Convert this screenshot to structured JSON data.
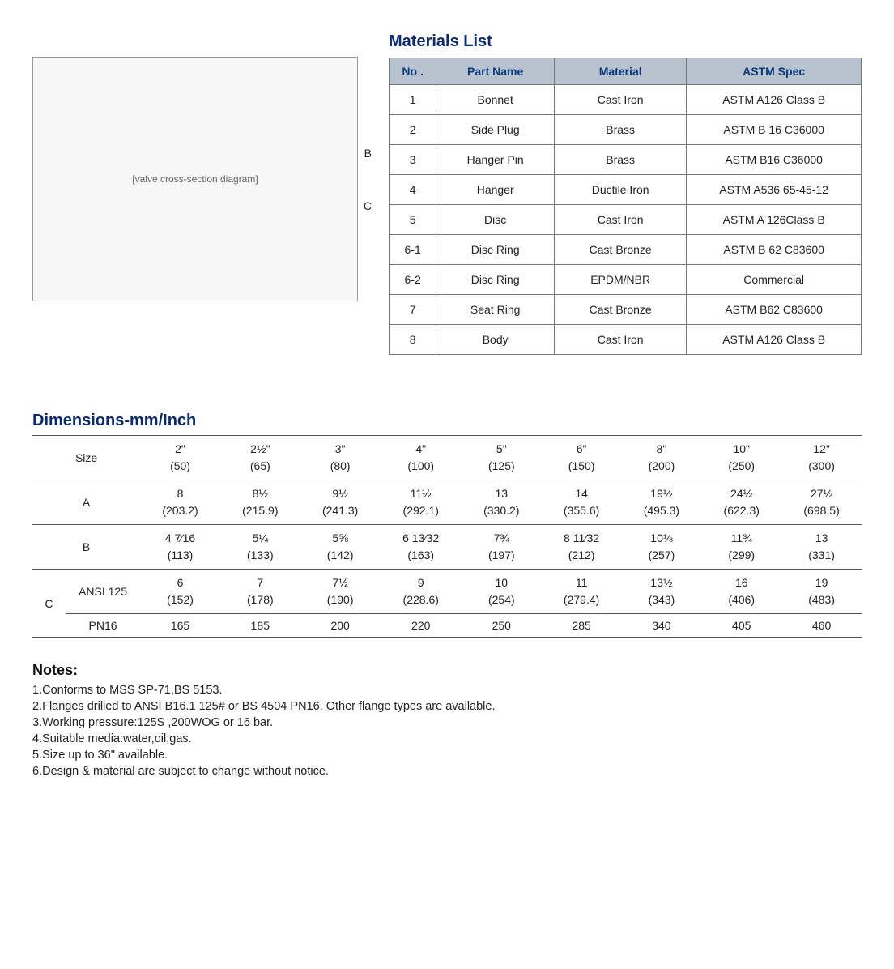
{
  "materials": {
    "title": "Materials List",
    "columns": [
      "No .",
      "Part Name",
      "Material",
      "ASTM Spec"
    ],
    "rows": [
      {
        "no": "1",
        "part": "Bonnet",
        "material": "Cast Iron",
        "spec": "ASTM A126 Class B"
      },
      {
        "no": "2",
        "part": "Side Plug",
        "material": "Brass",
        "spec": "ASTM B 16 C36000"
      },
      {
        "no": "3",
        "part": "Hanger Pin",
        "material": "Brass",
        "spec": "ASTM B16 C36000"
      },
      {
        "no": "4",
        "part": "Hanger",
        "material": "Ductile Iron",
        "spec": "ASTM A536 65-45-12"
      },
      {
        "no": "5",
        "part": "Disc",
        "material": "Cast Iron",
        "spec": "ASTM A 126Class B"
      },
      {
        "no": "6-1",
        "part": "Disc Ring",
        "material": "Cast Bronze",
        "spec": "ASTM B 62 C83600"
      },
      {
        "no": "6-2",
        "part": "Disc Ring",
        "material": "EPDM/NBR",
        "spec": "Commercial"
      },
      {
        "no": "7",
        "part": "Seat Ring",
        "material": "Cast Bronze",
        "spec": "ASTM B62 C83600"
      },
      {
        "no": "8",
        "part": "Body",
        "material": "Cast Iron",
        "spec": "ASTM A126 Class B"
      }
    ],
    "header_bg": "#b9c3d0",
    "header_color": "#0a3a7a",
    "border_color": "#777777"
  },
  "diagram": {
    "labels": {
      "B": "B",
      "C": "C"
    },
    "placeholder_text": "[valve cross-section diagram]"
  },
  "dimensions": {
    "title": "Dimensions-mm/Inch",
    "size_label": "Size",
    "sizes_top": [
      "2\"",
      "2½\"",
      "3\"",
      "4\"",
      "5\"",
      "6\"",
      "8\"",
      "10\"",
      "12\""
    ],
    "sizes_bottom": [
      "(50)",
      "(65)",
      "(80)",
      "(100)",
      "(125)",
      "(150)",
      "(200)",
      "(250)",
      "(300)"
    ],
    "A_label": "A",
    "A_top": [
      "8",
      "8½",
      "9½",
      "11½",
      "13",
      "14",
      "19½",
      "24½",
      "27½"
    ],
    "A_bottom": [
      "(203.2)",
      "(215.9)",
      "(241.3)",
      "(292.1)",
      "(330.2)",
      "(355.6)",
      "(495.3)",
      "(622.3)",
      "(698.5)"
    ],
    "B_label": "B",
    "B_top": [
      "4 7⁄16",
      "5¼",
      "5⅝",
      "6 13⁄32",
      "7¾",
      "8 11⁄32",
      "10⅛",
      "11¾",
      "13"
    ],
    "B_bottom": [
      "(113)",
      "(133)",
      "(142)",
      "(163)",
      "(197)",
      "(212)",
      "(257)",
      "(299)",
      "(331)"
    ],
    "C_label": "C",
    "C_ansi_label": "ANSI 125",
    "C_ansi_top": [
      "6",
      "7",
      "7½",
      "9",
      "10",
      "11",
      "13½",
      "16",
      "19"
    ],
    "C_ansi_bottom": [
      "(152)",
      "(178)",
      "(190)",
      "(228.6)",
      "(254)",
      "(279.4)",
      "(343)",
      "(406)",
      "(483)"
    ],
    "C_pn16_label": "PN16",
    "C_pn16": [
      "165",
      "185",
      "200",
      "220",
      "250",
      "285",
      "340",
      "405",
      "460"
    ]
  },
  "notes": {
    "title": "Notes:",
    "items": [
      "1.Conforms to MSS SP-71,BS 5153.",
      "2.Flanges drilled to ANSI B16.1 125# or BS 4504 PN16. Other flange types are available.",
      "3.Working pressure:125S ,200WOG or 16 bar.",
      "4.Suitable media:water,oil,gas.",
      "5.Size up to 36\" available.",
      "6.Design & material are subject to change without notice."
    ]
  },
  "colors": {
    "heading": "#0a2a6a",
    "text": "#1a1a1a",
    "table_border": "#555555"
  }
}
